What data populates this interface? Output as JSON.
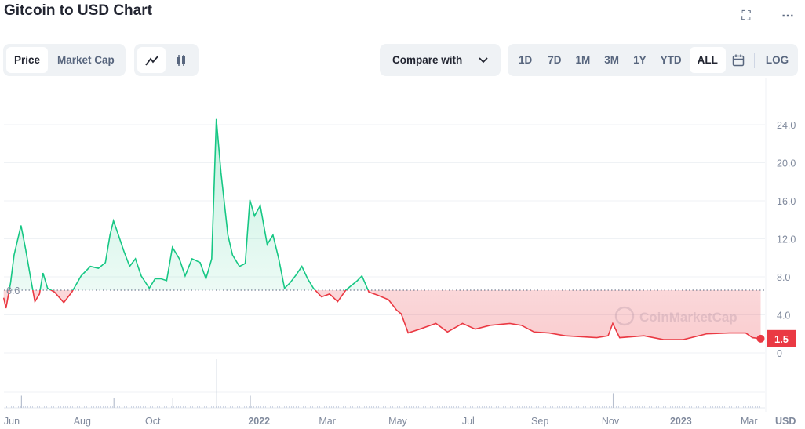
{
  "header": {
    "title": "Gitcoin to USD Chart",
    "icons": [
      "fullscreen-icon",
      "more-icon"
    ]
  },
  "toolbar": {
    "metric_tabs": [
      {
        "label": "Price",
        "active": true
      },
      {
        "label": "Market Cap",
        "active": false
      }
    ],
    "chart_types": [
      {
        "icon": "line-chart-icon",
        "active": true
      },
      {
        "icon": "candlestick-icon",
        "active": false
      }
    ],
    "compare": {
      "label": "Compare with"
    },
    "ranges": [
      {
        "label": "1D"
      },
      {
        "label": "7D"
      },
      {
        "label": "1M"
      },
      {
        "label": "3M"
      },
      {
        "label": "1Y"
      },
      {
        "label": "YTD"
      },
      {
        "label": "ALL",
        "active": true
      }
    ],
    "log_label": "LOG"
  },
  "chart_data": {
    "type": "line",
    "title": "",
    "ylabel": "USD",
    "ylim": [
      0,
      24.8
    ],
    "yticks": [
      "0",
      "4.0",
      "8.0",
      "12.0",
      "16.0",
      "20.0",
      "24.0"
    ],
    "xticks": [
      {
        "label": "Jun",
        "date": "2021-06-01"
      },
      {
        "label": "Aug",
        "date": "2021-08-01"
      },
      {
        "label": "Oct",
        "date": "2021-10-01"
      },
      {
        "label": "2022",
        "date": "2022-01-01",
        "bold": true
      },
      {
        "label": "Mar",
        "date": "2022-03-01"
      },
      {
        "label": "May",
        "date": "2022-05-01"
      },
      {
        "label": "Jul",
        "date": "2022-07-01"
      },
      {
        "label": "Sep",
        "date": "2022-09-01"
      },
      {
        "label": "Nov",
        "date": "2022-11-01"
      },
      {
        "label": "2023",
        "date": "2023-01-01",
        "bold": true
      },
      {
        "label": "Mar",
        "date": "2023-03-01"
      }
    ],
    "reference_value": 6.6,
    "reference_label": "6.6",
    "current_value": 1.5,
    "current_label": "1.5",
    "colors": {
      "up": "#16c784",
      "down": "#ea3943",
      "grid": "#eff2f5"
    },
    "watermark": "CoinMarketCap",
    "series": [
      {
        "points": [
          [
            "2021-05-25",
            5.8
          ],
          [
            "2021-05-27",
            4.7
          ],
          [
            "2021-05-31",
            7.4
          ],
          [
            "2021-06-03",
            10.3
          ],
          [
            "2021-06-09",
            13.4
          ],
          [
            "2021-06-13",
            10.9
          ],
          [
            "2021-06-18",
            7.4
          ],
          [
            "2021-06-21",
            5.4
          ],
          [
            "2021-06-25",
            6.2
          ],
          [
            "2021-06-28",
            8.4
          ],
          [
            "2021-07-02",
            6.8
          ],
          [
            "2021-07-08",
            6.4
          ],
          [
            "2021-07-16",
            5.3
          ],
          [
            "2021-07-23",
            6.4
          ],
          [
            "2021-07-31",
            8.1
          ],
          [
            "2021-08-08",
            9.1
          ],
          [
            "2021-08-15",
            8.9
          ],
          [
            "2021-08-21",
            9.5
          ],
          [
            "2021-08-25",
            12.4
          ],
          [
            "2021-08-28",
            13.9
          ],
          [
            "2021-09-01",
            12.5
          ],
          [
            "2021-09-06",
            10.7
          ],
          [
            "2021-09-11",
            9.1
          ],
          [
            "2021-09-16",
            9.9
          ],
          [
            "2021-09-21",
            8.1
          ],
          [
            "2021-09-28",
            6.8
          ],
          [
            "2021-10-03",
            7.8
          ],
          [
            "2021-10-08",
            7.8
          ],
          [
            "2021-10-13",
            7.6
          ],
          [
            "2021-10-18",
            11.1
          ],
          [
            "2021-10-24",
            9.9
          ],
          [
            "2021-10-29",
            8.1
          ],
          [
            "2021-11-04",
            9.9
          ],
          [
            "2021-11-11",
            9.5
          ],
          [
            "2021-11-16",
            7.8
          ],
          [
            "2021-11-21",
            9.9
          ],
          [
            "2021-11-25",
            24.6
          ],
          [
            "2021-11-29",
            19.0
          ],
          [
            "2021-12-05",
            12.4
          ],
          [
            "2021-12-09",
            10.3
          ],
          [
            "2021-12-15",
            9.1
          ],
          [
            "2021-12-20",
            9.4
          ],
          [
            "2021-12-24",
            16.1
          ],
          [
            "2021-12-28",
            14.4
          ],
          [
            "2022-01-02",
            15.5
          ],
          [
            "2022-01-08",
            11.4
          ],
          [
            "2022-01-13",
            12.4
          ],
          [
            "2022-01-18",
            9.9
          ],
          [
            "2022-01-23",
            6.8
          ],
          [
            "2022-01-28",
            7.4
          ],
          [
            "2022-02-02",
            8.2
          ],
          [
            "2022-02-07",
            9.1
          ],
          [
            "2022-02-12",
            7.8
          ],
          [
            "2022-02-17",
            6.8
          ],
          [
            "2022-02-24",
            5.9
          ],
          [
            "2022-03-03",
            6.2
          ],
          [
            "2022-03-10",
            5.4
          ],
          [
            "2022-03-17",
            6.6
          ],
          [
            "2022-03-27",
            7.6
          ],
          [
            "2022-03-31",
            8.1
          ],
          [
            "2022-04-06",
            6.4
          ],
          [
            "2022-04-13",
            6.1
          ],
          [
            "2022-04-23",
            5.6
          ],
          [
            "2022-04-30",
            4.5
          ],
          [
            "2022-05-04",
            4.1
          ],
          [
            "2022-05-10",
            2.1
          ],
          [
            "2022-05-20",
            2.5
          ],
          [
            "2022-06-03",
            3.1
          ],
          [
            "2022-06-13",
            2.2
          ],
          [
            "2022-06-26",
            3.1
          ],
          [
            "2022-07-07",
            2.5
          ],
          [
            "2022-07-20",
            2.9
          ],
          [
            "2022-08-06",
            3.1
          ],
          [
            "2022-08-16",
            2.9
          ],
          [
            "2022-08-27",
            2.2
          ],
          [
            "2022-09-09",
            2.1
          ],
          [
            "2022-09-23",
            1.8
          ],
          [
            "2022-10-20",
            1.6
          ],
          [
            "2022-10-30",
            1.8
          ],
          [
            "2022-11-03",
            3.1
          ],
          [
            "2022-11-09",
            1.6
          ],
          [
            "2022-11-30",
            1.8
          ],
          [
            "2022-12-17",
            1.4
          ],
          [
            "2023-01-03",
            1.4
          ],
          [
            "2023-01-23",
            2.0
          ],
          [
            "2023-02-12",
            2.1
          ],
          [
            "2023-02-26",
            2.1
          ],
          [
            "2023-03-04",
            1.6
          ],
          [
            "2023-03-11",
            1.5
          ]
        ]
      }
    ],
    "volume_relative": [
      [
        "2021-06-09",
        0.25
      ],
      [
        "2021-08-28",
        0.2
      ],
      [
        "2021-10-18",
        0.2
      ],
      [
        "2021-11-25",
        1.0
      ],
      [
        "2021-12-24",
        0.25
      ],
      [
        "2022-11-03",
        0.3
      ]
    ]
  }
}
